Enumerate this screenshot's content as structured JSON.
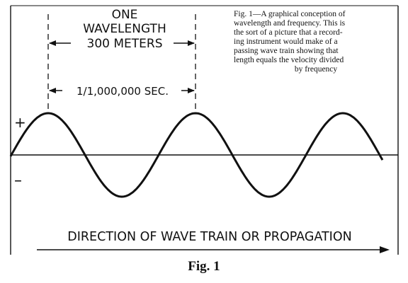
{
  "wavelength_label": {
    "line1": "ONE",
    "line2": "WAVELENGTH",
    "line3": "300 METERS"
  },
  "period_label": "1/1,000,000 SEC.",
  "caption": [
    "Fig. 1—A graphical conception of",
    "wavelength and frequency. This is",
    "the sort of a picture that a record-",
    "ing instrument would make of a",
    "passing wave train showing that",
    "length equals the velocity divided",
    "by frequency"
  ],
  "plus_sign": "+",
  "minus_sign": "–",
  "direction_label": "DIRECTION OF WAVE TRAIN OR PROPAGATION",
  "figure_label": "Fig. 1",
  "colors": {
    "ink": "#111111",
    "paper": "#ffffff"
  }
}
